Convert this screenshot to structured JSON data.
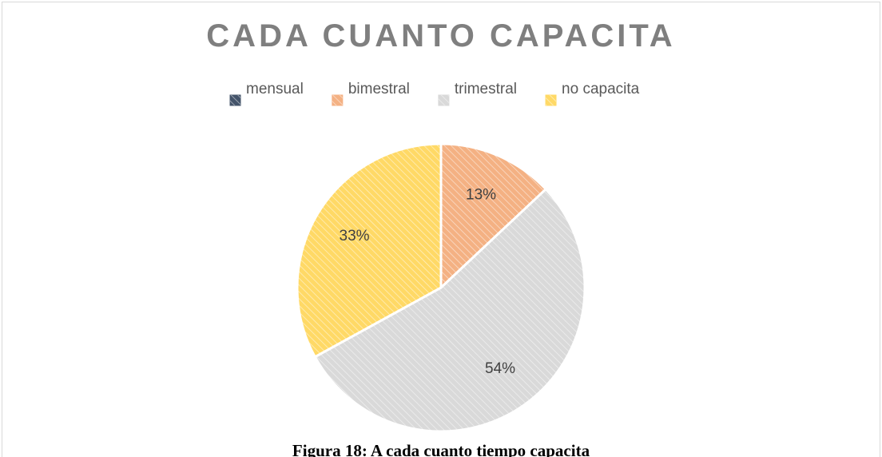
{
  "chart_data": {
    "type": "pie",
    "title": "CADA CUANTO CAPACITA",
    "categories": [
      "mensual",
      "bimestral",
      "trimestral",
      "no capacita"
    ],
    "values": [
      0,
      13,
      54,
      33
    ],
    "value_labels": [
      null,
      "13%",
      "54%",
      "33%"
    ],
    "colors": [
      "#44546a",
      "#f4b183",
      "#d9d9d9",
      "#ffd966"
    ],
    "legend": "top",
    "caption": "Figura  18: A cada cuanto tiempo capacita"
  }
}
